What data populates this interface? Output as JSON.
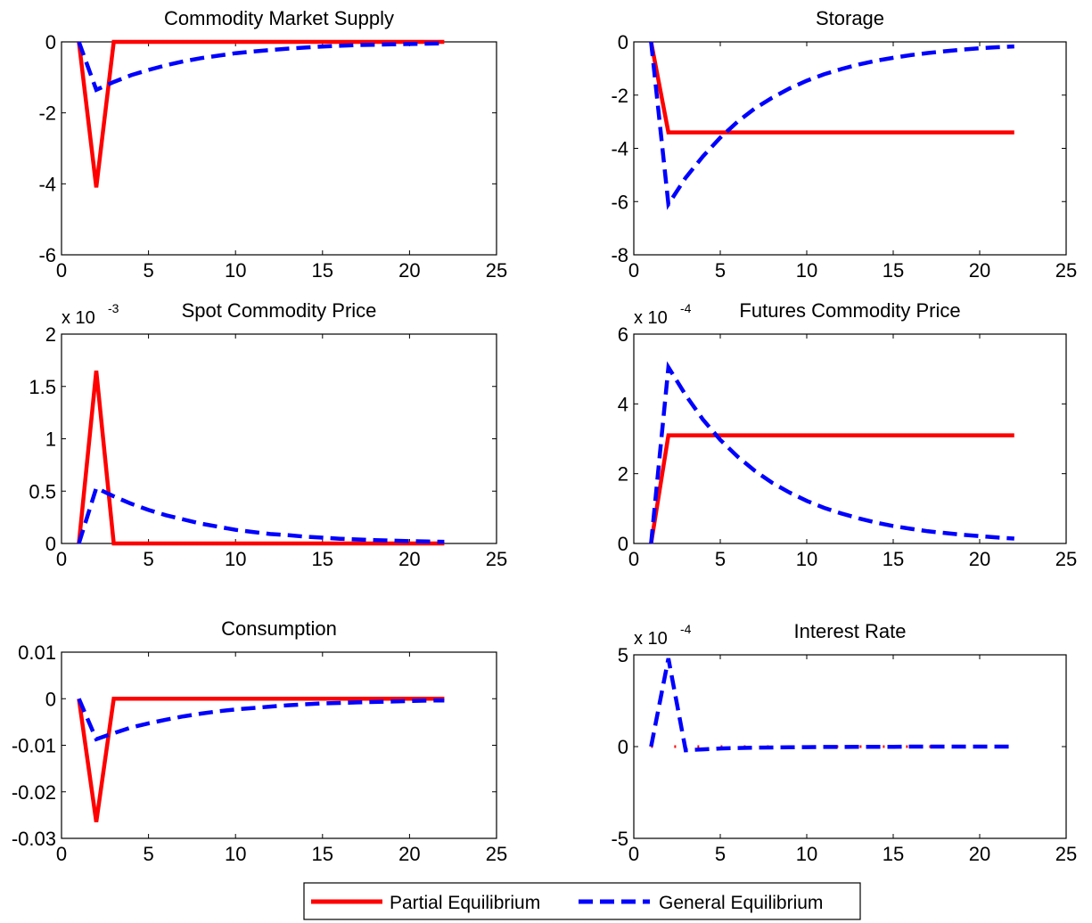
{
  "legend": {
    "partial_label": "Partial Equilibrium",
    "general_label": "General Equilibrium",
    "partial_color": "#ff0000",
    "general_color": "#0000ff"
  },
  "chart_data": [
    {
      "type": "line",
      "title": "Commodity Market Supply",
      "multiplier": {
        "base": "x 10",
        "exp": ""
      },
      "xlim": [
        0,
        25
      ],
      "ylim": [
        -6,
        0
      ],
      "xticks": [
        0,
        5,
        10,
        15,
        20,
        25
      ],
      "yticks": [
        -6,
        -4,
        -2,
        0
      ],
      "ytick_labels": [
        "-6",
        "-4",
        "-2",
        "0"
      ],
      "x": [
        1,
        2,
        3,
        4,
        5,
        6,
        7,
        8,
        9,
        10,
        11,
        12,
        13,
        14,
        15,
        16,
        17,
        18,
        19,
        20,
        21,
        22
      ],
      "series": [
        {
          "name": "Partial Equilibrium",
          "style": "solid",
          "values": [
            0,
            -4.1,
            0,
            0,
            0,
            0,
            0,
            0,
            0,
            0,
            0,
            0,
            0,
            0,
            0,
            0,
            0,
            0,
            0,
            0,
            0,
            0
          ]
        },
        {
          "name": "General Equilibrium",
          "style": "dashed",
          "values": [
            0,
            -1.35,
            -1.13,
            -0.94,
            -0.79,
            -0.66,
            -0.55,
            -0.46,
            -0.39,
            -0.32,
            -0.27,
            -0.23,
            -0.19,
            -0.16,
            -0.13,
            -0.11,
            -0.09,
            -0.08,
            -0.07,
            -0.06,
            -0.05,
            -0.04
          ]
        }
      ]
    },
    {
      "type": "line",
      "title": "Storage",
      "multiplier": {
        "base": "x 10",
        "exp": ""
      },
      "xlim": [
        0,
        25
      ],
      "ylim": [
        -8,
        0
      ],
      "xticks": [
        0,
        5,
        10,
        15,
        20,
        25
      ],
      "yticks": [
        -8,
        -6,
        -4,
        -2,
        0
      ],
      "ytick_labels": [
        "-8",
        "-6",
        "-4",
        "-2",
        "0"
      ],
      "x": [
        1,
        2,
        3,
        4,
        5,
        6,
        7,
        8,
        9,
        10,
        11,
        12,
        13,
        14,
        15,
        16,
        17,
        18,
        19,
        20,
        21,
        22
      ],
      "series": [
        {
          "name": "Partial Equilibrium",
          "style": "solid",
          "values": [
            0,
            -3.4,
            -3.4,
            -3.4,
            -3.4,
            -3.4,
            -3.4,
            -3.4,
            -3.4,
            -3.4,
            -3.4,
            -3.4,
            -3.4,
            -3.4,
            -3.4,
            -3.4,
            -3.4,
            -3.4,
            -3.4,
            -3.4,
            -3.4,
            -3.4
          ]
        },
        {
          "name": "General Equilibrium",
          "style": "dashed",
          "values": [
            0,
            -6.1,
            -5.1,
            -4.3,
            -3.6,
            -3.0,
            -2.5,
            -2.1,
            -1.75,
            -1.46,
            -1.22,
            -1.02,
            -0.85,
            -0.71,
            -0.6,
            -0.5,
            -0.42,
            -0.35,
            -0.29,
            -0.24,
            -0.2,
            -0.17
          ]
        }
      ]
    },
    {
      "type": "line",
      "title": "Spot Commodity Price",
      "multiplier": {
        "base": "x 10",
        "exp": "-3"
      },
      "xlim": [
        0,
        25
      ],
      "ylim": [
        0,
        2
      ],
      "xticks": [
        0,
        5,
        10,
        15,
        20,
        25
      ],
      "yticks": [
        0,
        0.5,
        1,
        1.5,
        2
      ],
      "ytick_labels": [
        "0",
        "0.5",
        "1",
        "1.5",
        "2"
      ],
      "x": [
        1,
        2,
        3,
        4,
        5,
        6,
        7,
        8,
        9,
        10,
        11,
        12,
        13,
        14,
        15,
        16,
        17,
        18,
        19,
        20,
        21,
        22
      ],
      "series": [
        {
          "name": "Partial Equilibrium",
          "style": "solid",
          "values": [
            0,
            1.65,
            0,
            0,
            0,
            0,
            0,
            0,
            0,
            0,
            0,
            0,
            0,
            0,
            0,
            0,
            0,
            0,
            0,
            0,
            0,
            0
          ]
        },
        {
          "name": "General Equilibrium",
          "style": "dashed",
          "values": [
            0,
            0.53,
            0.45,
            0.38,
            0.32,
            0.27,
            0.23,
            0.19,
            0.16,
            0.13,
            0.11,
            0.09,
            0.08,
            0.065,
            0.055,
            0.045,
            0.038,
            0.032,
            0.027,
            0.022,
            0.019,
            0.016
          ]
        }
      ]
    },
    {
      "type": "line",
      "title": "Futures Commodity Price",
      "multiplier": {
        "base": "x 10",
        "exp": "-4"
      },
      "xlim": [
        0,
        25
      ],
      "ylim": [
        0,
        6
      ],
      "xticks": [
        0,
        5,
        10,
        15,
        20,
        25
      ],
      "yticks": [
        0,
        2,
        4,
        6
      ],
      "ytick_labels": [
        "0",
        "2",
        "4",
        "6"
      ],
      "x": [
        1,
        2,
        3,
        4,
        5,
        6,
        7,
        8,
        9,
        10,
        11,
        12,
        13,
        14,
        15,
        16,
        17,
        18,
        19,
        20,
        21,
        22
      ],
      "series": [
        {
          "name": "Partial Equilibrium",
          "style": "solid",
          "values": [
            0,
            3.1,
            3.1,
            3.1,
            3.1,
            3.1,
            3.1,
            3.1,
            3.1,
            3.1,
            3.1,
            3.1,
            3.1,
            3.1,
            3.1,
            3.1,
            3.1,
            3.1,
            3.1,
            3.1,
            3.1,
            3.1
          ]
        },
        {
          "name": "General Equilibrium",
          "style": "dashed",
          "values": [
            0,
            5.05,
            4.25,
            3.55,
            2.97,
            2.49,
            2.08,
            1.74,
            1.46,
            1.22,
            1.02,
            0.86,
            0.72,
            0.6,
            0.5,
            0.42,
            0.35,
            0.3,
            0.25,
            0.21,
            0.17,
            0.14
          ]
        }
      ]
    },
    {
      "type": "line",
      "title": "Consumption",
      "multiplier": {
        "base": "x 10",
        "exp": ""
      },
      "xlim": [
        0,
        25
      ],
      "ylim": [
        -0.03,
        0.01
      ],
      "xticks": [
        0,
        5,
        10,
        15,
        20,
        25
      ],
      "yticks": [
        -0.03,
        -0.02,
        -0.01,
        0,
        0.01
      ],
      "ytick_labels": [
        "-0.03",
        "-0.02",
        "-0.01",
        "0",
        "0.01"
      ],
      "x": [
        1,
        2,
        3,
        4,
        5,
        6,
        7,
        8,
        9,
        10,
        11,
        12,
        13,
        14,
        15,
        16,
        17,
        18,
        19,
        20,
        21,
        22
      ],
      "series": [
        {
          "name": "Partial Equilibrium",
          "style": "solid",
          "values": [
            0,
            -0.0265,
            0,
            0,
            0,
            0,
            0,
            0,
            0,
            0,
            0,
            0,
            0,
            0,
            0,
            0,
            0,
            0,
            0,
            0,
            0,
            0
          ]
        },
        {
          "name": "General Equilibrium",
          "style": "dashed",
          "values": [
            0,
            -0.0087,
            -0.0074,
            -0.0062,
            -0.0053,
            -0.0045,
            -0.0038,
            -0.0032,
            -0.0027,
            -0.0023,
            -0.002,
            -0.0017,
            -0.0014,
            -0.0012,
            -0.001,
            -0.0009,
            -0.0008,
            -0.0007,
            -0.0006,
            -0.0005,
            -0.0004,
            -0.0004
          ]
        }
      ]
    },
    {
      "type": "line",
      "title": "Interest Rate",
      "multiplier": {
        "base": "x 10",
        "exp": "-4"
      },
      "xlim": [
        0,
        25
      ],
      "ylim": [
        -5,
        5
      ],
      "xticks": [
        0,
        5,
        10,
        15,
        20,
        25
      ],
      "yticks": [
        -5,
        0,
        5
      ],
      "ytick_labels": [
        "-5",
        "0",
        "5"
      ],
      "x": [
        1,
        2,
        3,
        4,
        5,
        6,
        7,
        8,
        9,
        10,
        11,
        12,
        13,
        14,
        15,
        16,
        17,
        18,
        19,
        20,
        21,
        22
      ],
      "series": [
        {
          "name": "Partial Equilibrium",
          "style": "dotted",
          "values": [
            0,
            0,
            0,
            0,
            0,
            0,
            0,
            0,
            0,
            0,
            0,
            0,
            0,
            0,
            0,
            0,
            0,
            0,
            0,
            0,
            0,
            0
          ]
        },
        {
          "name": "General Equilibrium",
          "style": "dashed",
          "values": [
            0,
            4.8,
            -0.2,
            -0.15,
            -0.1,
            -0.08,
            -0.06,
            -0.05,
            -0.04,
            -0.03,
            -0.02,
            -0.02,
            -0.01,
            -0.01,
            -0.01,
            0,
            0,
            0,
            0,
            0,
            0,
            0
          ]
        }
      ]
    }
  ]
}
